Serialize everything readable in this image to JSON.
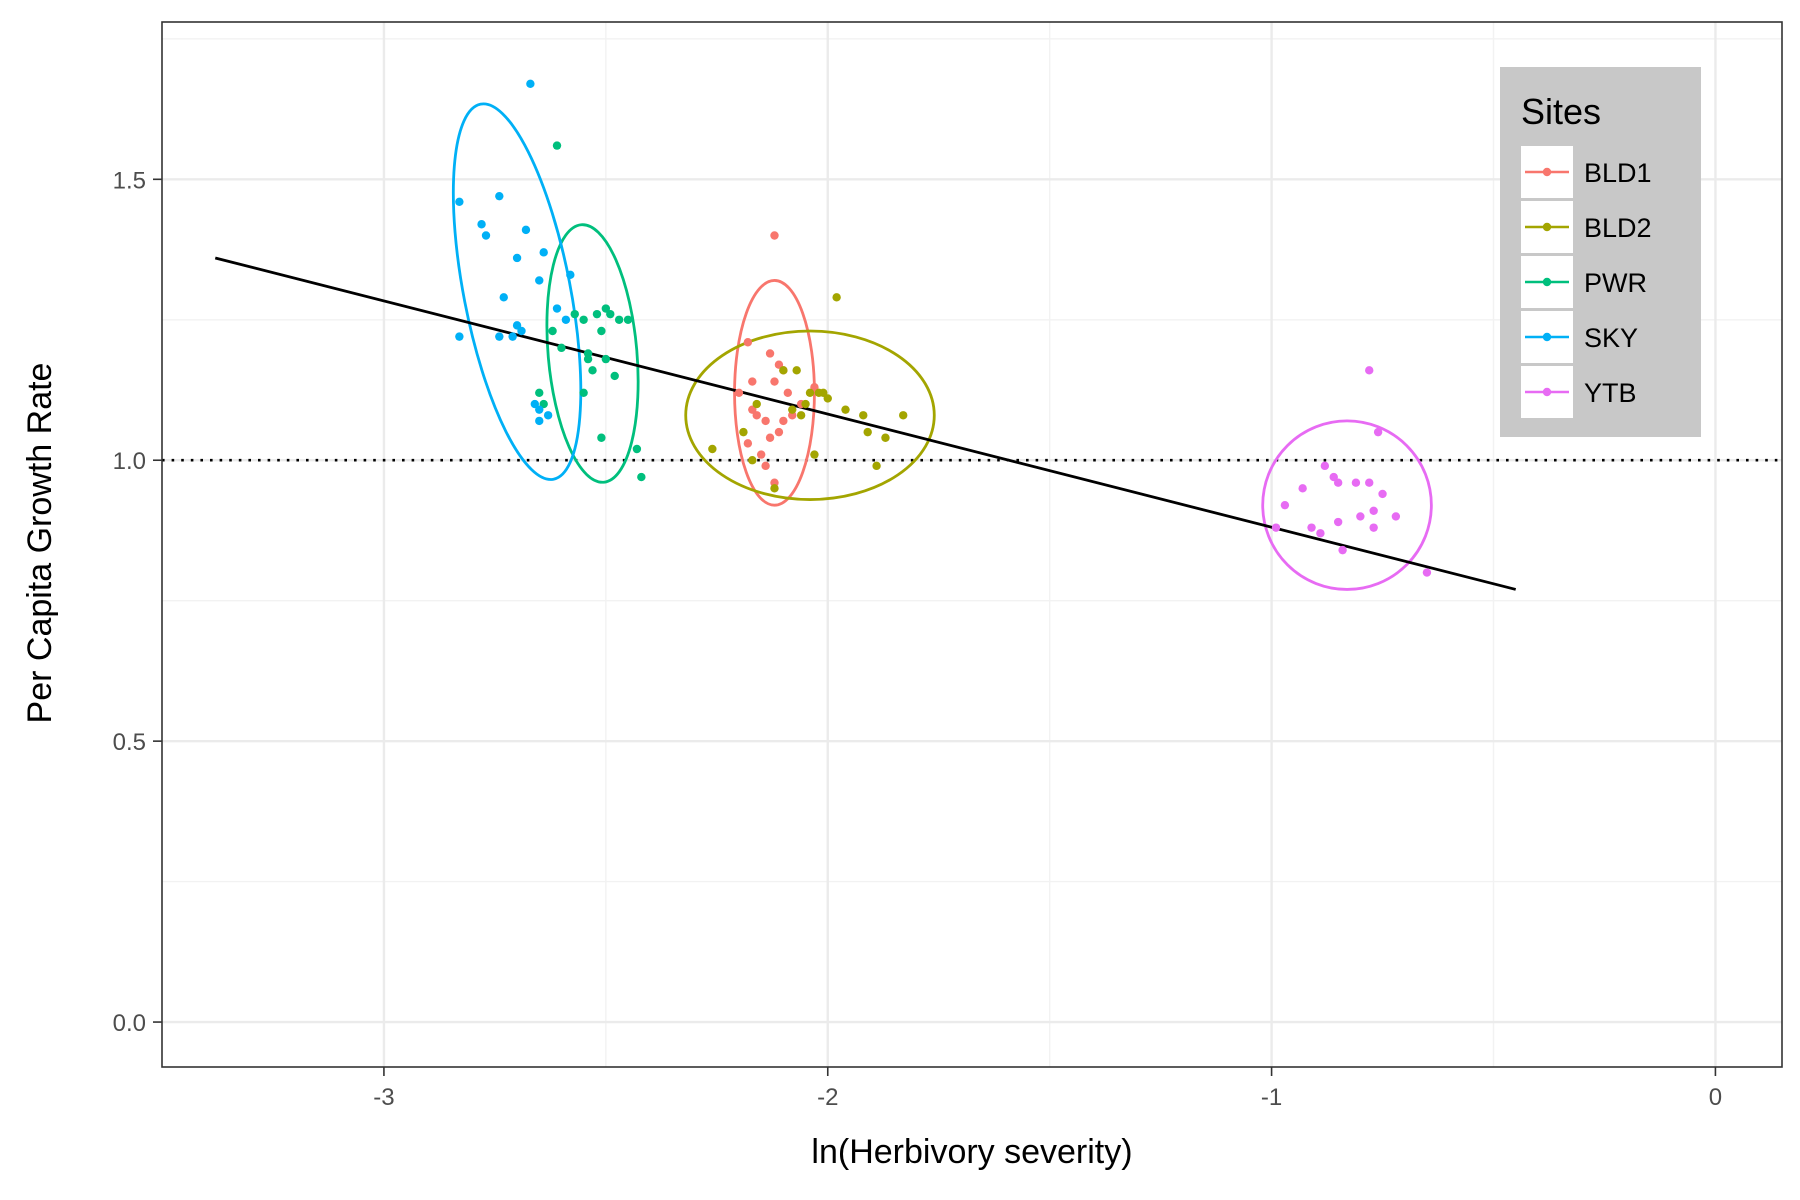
{
  "chart_data": {
    "type": "scatter",
    "xlabel": "ln(Herbivory severity)",
    "ylabel": "Per Capita Growth Rate",
    "xlim": [
      -3.5,
      0.15
    ],
    "ylim": [
      -0.08,
      1.78
    ],
    "x_ticks": [
      -3,
      -2,
      -1,
      0
    ],
    "x_tick_labels": [
      "-3",
      "-2",
      "-1",
      "0"
    ],
    "y_ticks": [
      0.0,
      0.5,
      1.0,
      1.5
    ],
    "y_tick_labels": [
      "0.0",
      "0.5",
      "1.0",
      "1.5"
    ],
    "grid": true,
    "reference_line": {
      "y": 1.0,
      "style": "dotted",
      "color": "#000000"
    },
    "trend_line": {
      "x": [
        -3.38,
        -0.45
      ],
      "y": [
        1.36,
        0.77
      ],
      "color": "#000000"
    },
    "legend": {
      "title": "Sites",
      "position": "top-right",
      "entries": [
        "BLD1",
        "BLD2",
        "PWR",
        "SKY",
        "YTB"
      ]
    },
    "series": [
      {
        "name": "BLD1",
        "color": "#F8766D",
        "ellipse": {
          "cx": -2.12,
          "cy": 1.12,
          "rx": 0.09,
          "ry": 0.2
        },
        "points": [
          [
            -2.12,
            1.4
          ],
          [
            -2.13,
            1.19
          ],
          [
            -2.11,
            1.17
          ],
          [
            -2.1,
            1.16
          ],
          [
            -2.18,
            1.21
          ],
          [
            -2.17,
            1.14
          ],
          [
            -2.12,
            1.14
          ],
          [
            -2.2,
            1.12
          ],
          [
            -2.17,
            1.09
          ],
          [
            -2.16,
            1.08
          ],
          [
            -2.14,
            1.07
          ],
          [
            -2.1,
            1.07
          ],
          [
            -2.08,
            1.08
          ],
          [
            -2.13,
            1.04
          ],
          [
            -2.18,
            1.03
          ],
          [
            -2.15,
            1.01
          ],
          [
            -2.14,
            0.99
          ],
          [
            -2.12,
            0.96
          ],
          [
            -2.03,
            1.13
          ],
          [
            -2.06,
            1.1
          ],
          [
            -2.09,
            1.12
          ],
          [
            -2.11,
            1.05
          ]
        ]
      },
      {
        "name": "BLD2",
        "color": "#A3A500",
        "ellipse": {
          "cx": -2.04,
          "cy": 1.08,
          "rx": 0.28,
          "ry": 0.15
        },
        "points": [
          [
            -1.98,
            1.29
          ],
          [
            -2.1,
            1.16
          ],
          [
            -2.07,
            1.16
          ],
          [
            -2.04,
            1.12
          ],
          [
            -2.02,
            1.12
          ],
          [
            -2.01,
            1.12
          ],
          [
            -2.05,
            1.1
          ],
          [
            -2.08,
            1.09
          ],
          [
            -2.06,
            1.08
          ],
          [
            -1.96,
            1.09
          ],
          [
            -1.92,
            1.08
          ],
          [
            -1.83,
            1.08
          ],
          [
            -1.91,
            1.05
          ],
          [
            -1.87,
            1.04
          ],
          [
            -2.16,
            1.1
          ],
          [
            -2.19,
            1.05
          ],
          [
            -2.26,
            1.02
          ],
          [
            -2.03,
            1.01
          ],
          [
            -2.17,
            1.0
          ],
          [
            -1.89,
            0.99
          ],
          [
            -2.12,
            0.95
          ],
          [
            -2.0,
            1.11
          ]
        ]
      },
      {
        "name": "PWR",
        "color": "#00BF7D",
        "ellipse": {
          "cx": -2.53,
          "cy": 1.19,
          "rx": 0.1,
          "ry": 0.23
        },
        "points": [
          [
            -2.61,
            1.56
          ],
          [
            -2.5,
            1.27
          ],
          [
            -2.52,
            1.26
          ],
          [
            -2.49,
            1.26
          ],
          [
            -2.47,
            1.25
          ],
          [
            -2.55,
            1.25
          ],
          [
            -2.45,
            1.25
          ],
          [
            -2.57,
            1.26
          ],
          [
            -2.51,
            1.23
          ],
          [
            -2.62,
            1.23
          ],
          [
            -2.54,
            1.19
          ],
          [
            -2.54,
            1.18
          ],
          [
            -2.5,
            1.18
          ],
          [
            -2.53,
            1.16
          ],
          [
            -2.55,
            1.12
          ],
          [
            -2.65,
            1.12
          ],
          [
            -2.64,
            1.1
          ],
          [
            -2.51,
            1.04
          ],
          [
            -2.43,
            1.02
          ],
          [
            -2.42,
            0.97
          ],
          [
            -2.6,
            1.2
          ],
          [
            -2.48,
            1.15
          ]
        ]
      },
      {
        "name": "SKY",
        "color": "#00B0F6",
        "ellipse": {
          "cx": -2.7,
          "cy": 1.3,
          "rx": 0.12,
          "ry": 0.34
        },
        "points": [
          [
            -2.67,
            1.67
          ],
          [
            -2.74,
            1.47
          ],
          [
            -2.83,
            1.46
          ],
          [
            -2.78,
            1.42
          ],
          [
            -2.68,
            1.41
          ],
          [
            -2.77,
            1.4
          ],
          [
            -2.64,
            1.37
          ],
          [
            -2.7,
            1.36
          ],
          [
            -2.58,
            1.33
          ],
          [
            -2.65,
            1.32
          ],
          [
            -2.73,
            1.29
          ],
          [
            -2.61,
            1.27
          ],
          [
            -2.59,
            1.25
          ],
          [
            -2.7,
            1.24
          ],
          [
            -2.69,
            1.23
          ],
          [
            -2.74,
            1.22
          ],
          [
            -2.71,
            1.22
          ],
          [
            -2.83,
            1.22
          ],
          [
            -2.66,
            1.1
          ],
          [
            -2.65,
            1.09
          ],
          [
            -2.63,
            1.08
          ],
          [
            -2.65,
            1.07
          ]
        ]
      },
      {
        "name": "YTB",
        "color": "#E76BF3",
        "ellipse": {
          "cx": -0.83,
          "cy": 0.92,
          "rx": 0.19,
          "ry": 0.15
        },
        "points": [
          [
            -0.78,
            1.16
          ],
          [
            -0.76,
            1.05
          ],
          [
            -0.88,
            0.99
          ],
          [
            -0.86,
            0.97
          ],
          [
            -0.85,
            0.96
          ],
          [
            -0.81,
            0.96
          ],
          [
            -0.78,
            0.96
          ],
          [
            -0.75,
            0.94
          ],
          [
            -0.93,
            0.95
          ],
          [
            -0.97,
            0.92
          ],
          [
            -0.77,
            0.91
          ],
          [
            -0.8,
            0.9
          ],
          [
            -0.72,
            0.9
          ],
          [
            -0.85,
            0.89
          ],
          [
            -0.91,
            0.88
          ],
          [
            -0.89,
            0.87
          ],
          [
            -0.99,
            0.88
          ],
          [
            -0.77,
            0.88
          ],
          [
            -0.84,
            0.84
          ],
          [
            -0.65,
            0.8
          ]
        ]
      }
    ]
  }
}
